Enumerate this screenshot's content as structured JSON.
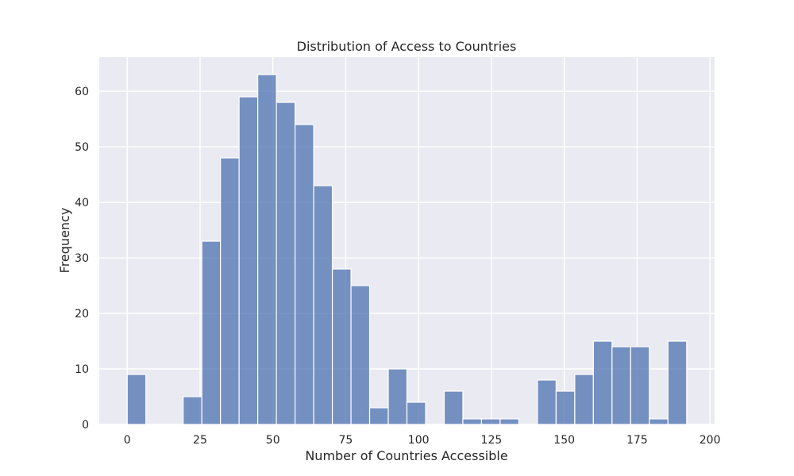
{
  "chart_data": {
    "type": "bar",
    "title": "Distribution of Access to Countries",
    "xlabel": "Number of Countries Accessible",
    "ylabel": "Frequency",
    "xlim": [
      -9.6,
      201.6
    ],
    "ylim": [
      0,
      66.15
    ],
    "xticks": [
      0,
      25,
      50,
      75,
      100,
      125,
      150,
      175,
      200
    ],
    "yticks": [
      0,
      10,
      20,
      30,
      40,
      50,
      60
    ],
    "bin_width": 6.4,
    "bins": [
      {
        "x0": 0.0,
        "count": 9
      },
      {
        "x0": 19.2,
        "count": 5
      },
      {
        "x0": 25.6,
        "count": 33
      },
      {
        "x0": 32.0,
        "count": 48
      },
      {
        "x0": 38.4,
        "count": 59
      },
      {
        "x0": 44.8,
        "count": 63
      },
      {
        "x0": 51.2,
        "count": 58
      },
      {
        "x0": 57.6,
        "count": 54
      },
      {
        "x0": 64.0,
        "count": 43
      },
      {
        "x0": 70.4,
        "count": 28
      },
      {
        "x0": 76.8,
        "count": 25
      },
      {
        "x0": 83.2,
        "count": 3
      },
      {
        "x0": 89.6,
        "count": 10
      },
      {
        "x0": 96.0,
        "count": 4
      },
      {
        "x0": 108.8,
        "count": 6
      },
      {
        "x0": 115.2,
        "count": 1
      },
      {
        "x0": 121.6,
        "count": 1
      },
      {
        "x0": 128.0,
        "count": 1
      },
      {
        "x0": 140.8,
        "count": 8
      },
      {
        "x0": 147.2,
        "count": 6
      },
      {
        "x0": 153.6,
        "count": 9
      },
      {
        "x0": 160.0,
        "count": 15
      },
      {
        "x0": 166.4,
        "count": 14
      },
      {
        "x0": 172.8,
        "count": 14
      },
      {
        "x0": 179.2,
        "count": 1
      },
      {
        "x0": 185.6,
        "count": 15
      }
    ],
    "grid": true,
    "bar_color": "#4c72b0",
    "plot_background": "#eaeaf2"
  }
}
